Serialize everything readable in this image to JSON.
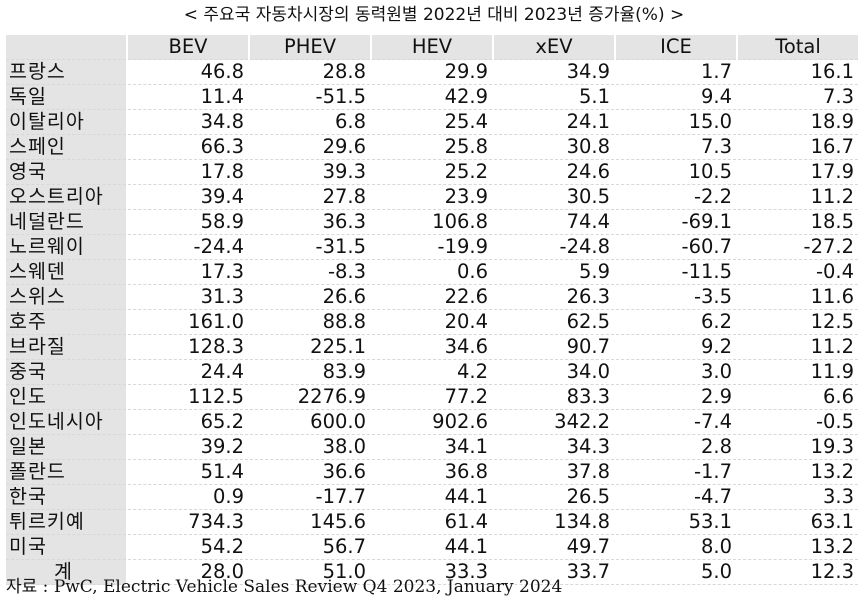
{
  "title": "< 주요국 자동차시장의 동력원별 2022년 대비 2023년 증가율(%) >",
  "table": {
    "columns": [
      "BEV",
      "PHEV",
      "HEV",
      "xEV",
      "ICE",
      "Total"
    ],
    "rows": [
      [
        "프랑스",
        "46.8",
        "28.8",
        "29.9",
        "34.9",
        "1.7",
        "16.1"
      ],
      [
        "독일",
        "11.4",
        "-51.5",
        "42.9",
        "5.1",
        "9.4",
        "7.3"
      ],
      [
        "이탈리아",
        "34.8",
        "6.8",
        "25.4",
        "24.1",
        "15.0",
        "18.9"
      ],
      [
        "스페인",
        "66.3",
        "29.6",
        "25.8",
        "30.8",
        "7.3",
        "16.7"
      ],
      [
        "영국",
        "17.8",
        "39.3",
        "25.2",
        "24.6",
        "10.5",
        "17.9"
      ],
      [
        "오스트리아",
        "39.4",
        "27.8",
        "23.9",
        "30.5",
        "-2.2",
        "11.2"
      ],
      [
        "네덜란드",
        "58.9",
        "36.3",
        "106.8",
        "74.4",
        "-69.1",
        "18.5"
      ],
      [
        "노르웨이",
        "-24.4",
        "-31.5",
        "-19.9",
        "-24.8",
        "-60.7",
        "-27.2"
      ],
      [
        "스웨덴",
        "17.3",
        "-8.3",
        "0.6",
        "5.9",
        "-11.5",
        "-0.4"
      ],
      [
        "스위스",
        "31.3",
        "26.6",
        "22.6",
        "26.3",
        "-3.5",
        "11.6"
      ],
      [
        "호주",
        "161.0",
        "88.8",
        "20.4",
        "62.5",
        "6.2",
        "12.5"
      ],
      [
        "브라질",
        "128.3",
        "225.1",
        "34.6",
        "90.7",
        "9.2",
        "11.2"
      ],
      [
        "중국",
        "24.4",
        "83.9",
        "4.2",
        "34.0",
        "3.0",
        "11.9"
      ],
      [
        "인도",
        "112.5",
        "2276.9",
        "77.2",
        "83.3",
        "2.9",
        "6.6"
      ],
      [
        "인도네시아",
        "65.2",
        "600.0",
        "902.6",
        "342.2",
        "-7.4",
        "-0.5"
      ],
      [
        "일본",
        "39.2",
        "38.0",
        "34.1",
        "34.3",
        "2.8",
        "19.3"
      ],
      [
        "폴란드",
        "51.4",
        "36.6",
        "36.8",
        "37.8",
        "-1.7",
        "13.2"
      ],
      [
        "한국",
        "0.9",
        "-17.7",
        "44.1",
        "26.5",
        "-4.7",
        "3.3"
      ],
      [
        "튀르키예",
        "734.3",
        "145.6",
        "61.4",
        "134.8",
        "53.1",
        "63.1"
      ],
      [
        "미국",
        "54.2",
        "56.7",
        "44.1",
        "49.7",
        "8.0",
        "13.2"
      ],
      [
        "계",
        "28.0",
        "51.0",
        "33.3",
        "33.7",
        "5.0",
        "12.3"
      ]
    ]
  },
  "source": "자료 : PwC, Electric Vehicle Sales Review Q4 2023, January 2024"
}
